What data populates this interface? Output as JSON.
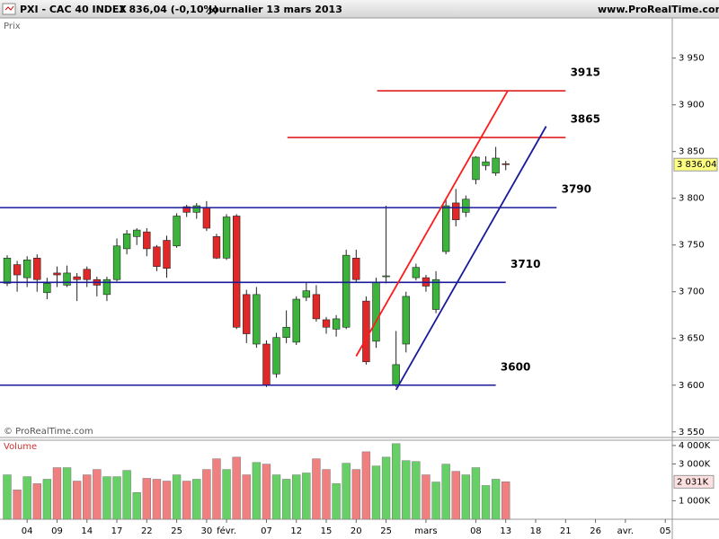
{
  "header": {
    "symbol": "PXI - CAC 40 INDEX",
    "quote": "3 836,04 (-0,10%)",
    "period": "Journalier  13 mars 2013",
    "site": "www.ProRealTime.com"
  },
  "chart_data": [
    {
      "type": "candlestick",
      "title": "Prix",
      "credit": "© ProRealTime.com",
      "xlim": [
        -0.72,
        66.7
      ],
      "xticks": [
        {
          "value": 2,
          "label": "04"
        },
        {
          "value": 5,
          "label": "09"
        },
        {
          "value": 8,
          "label": "14"
        },
        {
          "value": 11,
          "label": "17"
        },
        {
          "value": 14,
          "label": "22"
        },
        {
          "value": 17,
          "label": "25"
        },
        {
          "value": 20,
          "label": "30"
        },
        {
          "value": 22,
          "label": "févr."
        },
        {
          "value": 26,
          "label": "07"
        },
        {
          "value": 29,
          "label": "12"
        },
        {
          "value": 32,
          "label": "15"
        },
        {
          "value": 35,
          "label": "20"
        },
        {
          "value": 38,
          "label": "25"
        },
        {
          "value": 42,
          "label": "mars"
        },
        {
          "value": 47,
          "label": "08"
        },
        {
          "value": 50,
          "label": "13"
        },
        {
          "value": 53,
          "label": "18"
        },
        {
          "value": 56,
          "label": "21"
        },
        {
          "value": 59,
          "label": "26"
        },
        {
          "value": 62,
          "label": "avr."
        },
        {
          "value": 66,
          "label": "05"
        }
      ],
      "ylim": [
        3544,
        3992
      ],
      "yticks": [
        {
          "value": 3550,
          "label": "3 550"
        },
        {
          "value": 3600,
          "label": "3 600"
        },
        {
          "value": 3650,
          "label": "3 650"
        },
        {
          "value": 3700,
          "label": "3 700"
        },
        {
          "value": 3750,
          "label": "3 750"
        },
        {
          "value": 3800,
          "label": "3 800"
        },
        {
          "value": 3850,
          "label": "3 850"
        },
        {
          "value": 3900,
          "label": "3 900"
        },
        {
          "value": 3950,
          "label": "3 950"
        }
      ],
      "up_color": "#3cb43c",
      "down_color": "#e02828",
      "open": [
        3709,
        3729,
        3715,
        3736,
        3699,
        3720,
        3707,
        3716,
        3724,
        3713,
        3697,
        3713,
        3746,
        3759,
        3764,
        3748,
        3755,
        3749,
        3791,
        3785,
        3790,
        3759,
        3736,
        3781,
        3697,
        3644,
        3644,
        3612,
        3651,
        3646,
        3694,
        3697,
        3670,
        3660,
        3662,
        3736,
        3690,
        3647,
        3716,
        3600,
        3644,
        3715,
        3715,
        3681,
        3743,
        3795,
        3785,
        3820,
        3835,
        3827,
        3837
      ],
      "high": [
        3739,
        3733,
        3738,
        3740,
        3715,
        3727,
        3728,
        3720,
        3727,
        3716,
        3716,
        3757,
        3766,
        3768,
        3768,
        3750,
        3760,
        3784,
        3793,
        3795,
        3797,
        3762,
        3783,
        3783,
        3702,
        3705,
        3648,
        3656,
        3680,
        3695,
        3710,
        3707,
        3673,
        3675,
        3745,
        3745,
        3695,
        3715,
        3792,
        3658,
        3700,
        3730,
        3718,
        3722,
        3800,
        3810,
        3803,
        3845,
        3845,
        3855,
        3840
      ],
      "low": [
        3706,
        3700,
        3705,
        3700,
        3692,
        3705,
        3705,
        3690,
        3705,
        3695,
        3690,
        3711,
        3740,
        3750,
        3738,
        3722,
        3715,
        3747,
        3780,
        3778,
        3765,
        3735,
        3734,
        3660,
        3645,
        3640,
        3598,
        3608,
        3645,
        3643,
        3690,
        3668,
        3655,
        3652,
        3660,
        3710,
        3622,
        3640,
        3709,
        3598,
        3635,
        3712,
        3700,
        3677,
        3740,
        3770,
        3780,
        3815,
        3830,
        3824,
        3830
      ],
      "close": [
        3736,
        3718,
        3734,
        3713,
        3709,
        3718,
        3720,
        3713,
        3713,
        3707,
        3713,
        3749,
        3762,
        3766,
        3746,
        3727,
        3725,
        3781,
        3785,
        3792,
        3768,
        3736,
        3780,
        3662,
        3655,
        3697,
        3600,
        3651,
        3662,
        3692,
        3701,
        3671,
        3662,
        3671,
        3739,
        3713,
        3625,
        3710,
        3717,
        3622,
        3695,
        3726,
        3706,
        3713,
        3792,
        3777,
        3799,
        3844,
        3839,
        3843,
        3836.04
      ],
      "close_label": "3 836,04",
      "levels": [
        {
          "value": 3915,
          "label": "3915",
          "x_range": [
            37.1,
            56.0
          ],
          "color": "#e02020"
        },
        {
          "value": 3865,
          "label": "3865",
          "x_range": [
            28.1,
            56.0
          ],
          "color": "#e02020"
        },
        {
          "value": 3790,
          "label": "3790",
          "x_range": [
            -0.72,
            55.1
          ],
          "color": "#1a1a9a"
        },
        {
          "value": 3710,
          "label": "3710",
          "x_range": [
            -0.72,
            50.0
          ],
          "color": "#1a1a9a"
        },
        {
          "value": 3600,
          "label": "3600",
          "x_range": [
            -0.72,
            49.0
          ],
          "color": "#1a1a9a"
        }
      ],
      "trend_lines": [
        {
          "x": [
            35.0,
            50.2
          ],
          "y": [
            3631,
            3915
          ],
          "color": "#ff1a1a"
        },
        {
          "x": [
            39.0,
            54.05
          ],
          "y": [
            3595,
            3877
          ],
          "color": "#1a1a9a"
        }
      ]
    },
    {
      "type": "bar",
      "title": "Volume",
      "ylim": [
        0,
        4240
      ],
      "yticks": [
        {
          "value": 1000,
          "label": "1 000K"
        },
        {
          "value": 3000,
          "label": "3 000K"
        },
        {
          "value": 4000,
          "label": "4 000K"
        }
      ],
      "up_color": "#66d066",
      "down_color": "#f08080",
      "values": [
        2410,
        1590,
        2310,
        1930,
        2170,
        2800,
        2800,
        2070,
        2410,
        2700,
        2310,
        2310,
        2650,
        1450,
        2220,
        2170,
        2070,
        2410,
        2070,
        2170,
        2700,
        3280,
        2700,
        3370,
        2410,
        3080,
        2990,
        2410,
        2170,
        2410,
        2510,
        3280,
        2700,
        1930,
        3040,
        2700,
        3660,
        2890,
        3370,
        4100,
        3180,
        3130,
        2410,
        2020,
        2990,
        2600,
        2410,
        2800,
        1830,
        2170,
        2031
      ],
      "last_value_label": "2 031K"
    }
  ]
}
